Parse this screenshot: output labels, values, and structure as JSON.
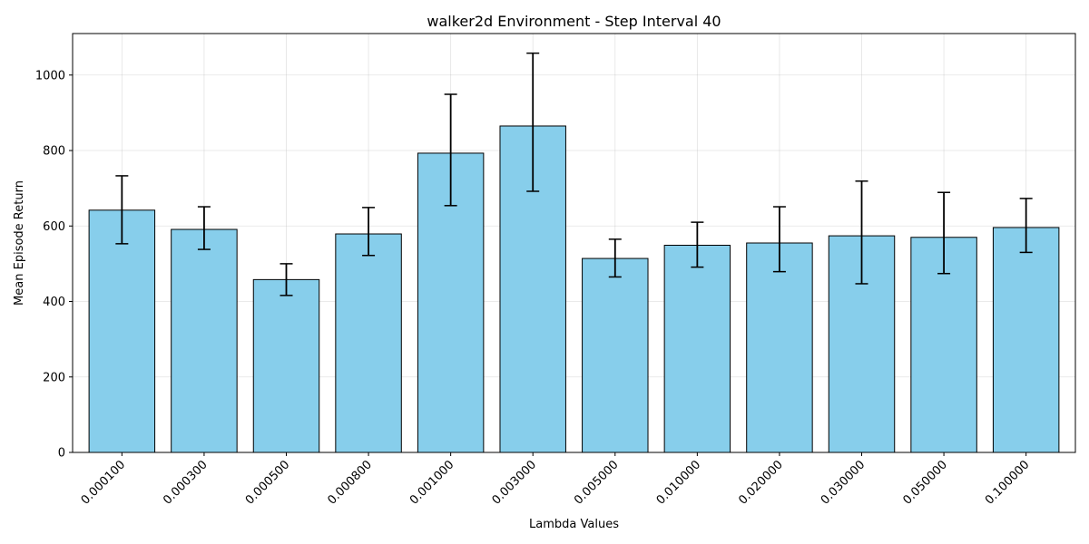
{
  "chart_data": {
    "type": "bar",
    "title": "walker2d Environment - Step Interval 40",
    "xlabel": "Lambda Values",
    "ylabel": "Mean Episode Return",
    "categories": [
      "0.000100",
      "0.000300",
      "0.000500",
      "0.000800",
      "0.001000",
      "0.003000",
      "0.005000",
      "0.010000",
      "0.020000",
      "0.030000",
      "0.050000",
      "0.100000"
    ],
    "values": [
      642,
      591,
      458,
      579,
      793,
      865,
      514,
      549,
      555,
      574,
      570,
      596
    ],
    "error_low": [
      553,
      538,
      416,
      522,
      654,
      692,
      465,
      491,
      479,
      447,
      474,
      530
    ],
    "error_high": [
      733,
      651,
      500,
      649,
      949,
      1058,
      565,
      610,
      651,
      719,
      689,
      673
    ],
    "ylim": [
      0,
      1110
    ],
    "yticks": [
      0,
      200,
      400,
      600,
      800,
      1000
    ],
    "bar_color": "#87ceeb",
    "edge_color": "#000000",
    "grid": true
  }
}
